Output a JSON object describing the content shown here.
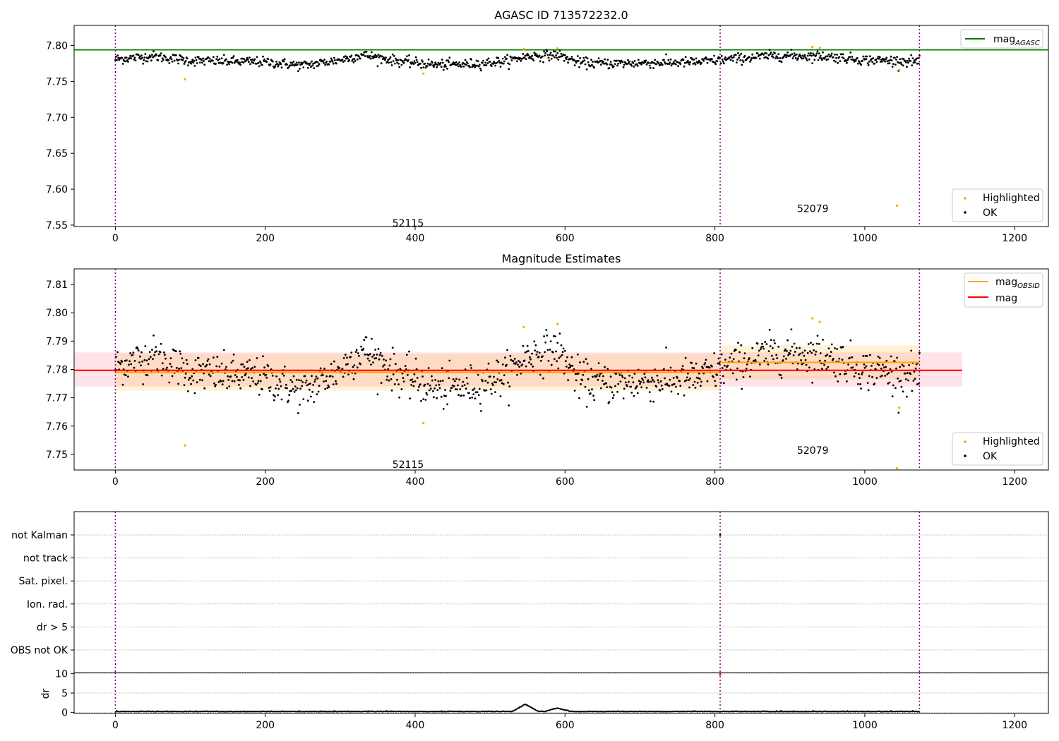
{
  "page": {
    "background": "#ffffff"
  },
  "chart_data": [
    {
      "type": "scatter",
      "title": "AGASC ID 713572232.0",
      "xlim": [
        -55,
        1245
      ],
      "ylim": [
        7.548,
        7.828
      ],
      "x_ticks": [
        "0",
        "200",
        "400",
        "600",
        "800",
        "1000",
        "1200"
      ],
      "x_tick_values": [
        0,
        200,
        400,
        600,
        800,
        1000,
        1200
      ],
      "y_ticks": [
        "7.55",
        "7.60",
        "7.65",
        "7.70",
        "7.75",
        "7.80"
      ],
      "y_tick_values": [
        7.55,
        7.6,
        7.65,
        7.7,
        7.75,
        7.8
      ],
      "reference_lines": [
        {
          "y": 7.794,
          "color": "#008000"
        }
      ],
      "obsid_boundaries": [
        0,
        807,
        1073
      ],
      "obsid_labels": [
        {
          "text": "52115",
          "x": 400,
          "y": 7.553
        },
        {
          "text": "52079",
          "x": 940,
          "y": 7.573
        }
      ],
      "legend_top": [
        {
          "label": "mag",
          "subscript": "AGASC",
          "color": "#008000",
          "kind": "line"
        }
      ],
      "legend_bottom": [
        {
          "label": "Highlighted",
          "color": "#ffa500",
          "kind": "dot"
        },
        {
          "label": "OK",
          "color": "#000000",
          "kind": "dot"
        }
      ],
      "segments": [
        {
          "x_start": 0,
          "x_end": 807,
          "mean": 7.779
        },
        {
          "x_start": 807,
          "x_end": 1073,
          "mean": 7.7825
        }
      ],
      "profile": [
        {
          "x": 0,
          "v": 7.781
        },
        {
          "x": 50,
          "v": 7.785
        },
        {
          "x": 100,
          "v": 7.779
        },
        {
          "x": 150,
          "v": 7.778
        },
        {
          "x": 200,
          "v": 7.777
        },
        {
          "x": 250,
          "v": 7.772
        },
        {
          "x": 300,
          "v": 7.78
        },
        {
          "x": 330,
          "v": 7.787
        },
        {
          "x": 380,
          "v": 7.778
        },
        {
          "x": 430,
          "v": 7.773
        },
        {
          "x": 470,
          "v": 7.774
        },
        {
          "x": 520,
          "v": 7.778
        },
        {
          "x": 550,
          "v": 7.785
        },
        {
          "x": 590,
          "v": 7.787
        },
        {
          "x": 620,
          "v": 7.776
        },
        {
          "x": 660,
          "v": 7.775
        },
        {
          "x": 720,
          "v": 7.776
        },
        {
          "x": 780,
          "v": 7.777
        },
        {
          "x": 807,
          "v": 7.78
        },
        {
          "x": 880,
          "v": 7.786
        },
        {
          "x": 950,
          "v": 7.785
        },
        {
          "x": 1000,
          "v": 7.78
        },
        {
          "x": 1073,
          "v": 7.778
        }
      ],
      "noise": 0.0035,
      "highlighted_points": [
        {
          "x": 93,
          "y": 7.753
        },
        {
          "x": 411,
          "y": 7.761
        },
        {
          "x": 545,
          "y": 7.795
        },
        {
          "x": 590,
          "y": 7.796
        },
        {
          "x": 930,
          "y": 7.798
        },
        {
          "x": 940,
          "y": 7.797
        },
        {
          "x": 1043,
          "y": 7.577
        },
        {
          "x": 1046,
          "y": 7.766
        }
      ]
    },
    {
      "type": "scatter",
      "title": "Magnitude Estimates",
      "xlim": [
        -55,
        1245
      ],
      "ylim": [
        7.7445,
        7.8155
      ],
      "x_ticks": [
        "0",
        "200",
        "400",
        "600",
        "800",
        "1000",
        "1200"
      ],
      "x_tick_values": [
        0,
        200,
        400,
        600,
        800,
        1000,
        1200
      ],
      "y_ticks": [
        "7.75",
        "7.76",
        "7.77",
        "7.78",
        "7.79",
        "7.80",
        "7.81"
      ],
      "y_tick_values": [
        7.75,
        7.76,
        7.77,
        7.78,
        7.79,
        7.8,
        7.81
      ],
      "bands": [
        {
          "x_start": -55,
          "x_end": 1130,
          "y_low": 7.774,
          "y_high": 7.786,
          "color": "#ffc0cb",
          "opacity": 0.45
        },
        {
          "x_start": 0,
          "x_end": 807,
          "y_low": 7.7725,
          "y_high": 7.7855,
          "color": "#ffa500",
          "opacity": 0.15
        },
        {
          "x_start": 807,
          "x_end": 1073,
          "y_low": 7.7765,
          "y_high": 7.7885,
          "color": "#ffa500",
          "opacity": 0.15
        }
      ],
      "mean_lines": [
        {
          "x_start": -55,
          "x_end": 1130,
          "y": 7.7797,
          "color": "#ff0000"
        },
        {
          "x_start": 0,
          "x_end": 807,
          "y": 7.779,
          "color": "#ffa500"
        },
        {
          "x_start": 807,
          "x_end": 1073,
          "y": 7.7825,
          "color": "#ffa500"
        }
      ],
      "obsid_boundaries": [
        0,
        807,
        1073
      ],
      "obsid_labels": [
        {
          "text": "52115",
          "x": 400,
          "y": 7.7465
        },
        {
          "text": "52079",
          "x": 940,
          "y": 7.7515
        }
      ],
      "legend_top": [
        {
          "label": "mag",
          "subscript": "OBSID",
          "color": "#ffa500",
          "kind": "line"
        },
        {
          "label": "mag",
          "subscript": "",
          "color": "#ff0000",
          "kind": "line"
        }
      ],
      "legend_bottom": [
        {
          "label": "Highlighted",
          "color": "#ffa500",
          "kind": "dot"
        },
        {
          "label": "OK",
          "color": "#000000",
          "kind": "dot"
        }
      ],
      "highlighted_points": [
        {
          "x": 93,
          "y": 7.7532
        },
        {
          "x": 411,
          "y": 7.7611
        },
        {
          "x": 545,
          "y": 7.795
        },
        {
          "x": 590,
          "y": 7.796
        },
        {
          "x": 930,
          "y": 7.798
        },
        {
          "x": 940,
          "y": 7.7968
        },
        {
          "x": 1043,
          "y": 7.7451
        },
        {
          "x": 1046,
          "y": 7.7665
        }
      ]
    },
    {
      "type": "scatter",
      "title": "",
      "xlim": [
        -55,
        1245
      ],
      "flag_rows": [
        "not Kalman",
        "not track",
        "Sat. pixel.",
        "Ion. rad.",
        "dr > 5",
        "OBS not OK"
      ],
      "flag_points": [
        {
          "row": "not Kalman",
          "x": 807
        }
      ],
      "obsid_boundaries": [
        0,
        807,
        1073
      ]
    },
    {
      "type": "line",
      "ylabel": "dr",
      "xlim": [
        -55,
        1245
      ],
      "ylim": [
        -0.3,
        10.3
      ],
      "x_ticks": [
        "0",
        "200",
        "400",
        "600",
        "800",
        "1000",
        "1200"
      ],
      "x_tick_values": [
        0,
        200,
        400,
        600,
        800,
        1000,
        1200
      ],
      "y_ticks": [
        "0",
        "5",
        "10"
      ],
      "y_tick_values": [
        0,
        5,
        10
      ],
      "obsid_boundaries": [
        0,
        807,
        1073
      ],
      "outliers": [
        {
          "x": 807,
          "y": 9.8,
          "color": "#ff0000"
        }
      ],
      "bumps": [
        {
          "x_start": 530,
          "x_end": 565,
          "peak": 1.9,
          "peak_x": 547
        },
        {
          "x_start": 575,
          "x_end": 610,
          "peak": 0.9,
          "peak_x": 590
        }
      ]
    }
  ]
}
